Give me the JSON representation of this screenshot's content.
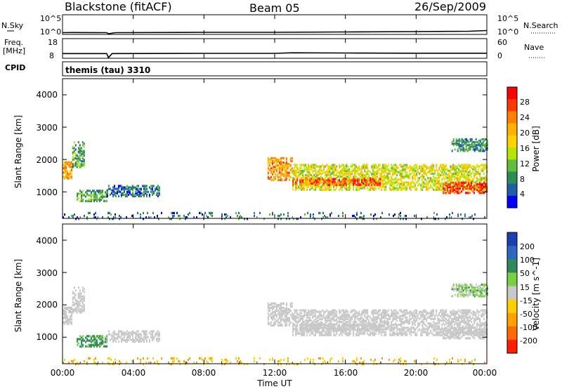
{
  "header": {
    "station": "Blackstone (fitACF)",
    "beam": "Beam 05",
    "date": "26/Sep/2009"
  },
  "strips": {
    "nsky_label": "N.Sky",
    "nsky_ticks": [
      "10^5",
      "10^0"
    ],
    "nsearch_label": "N.Search",
    "nsearch_ticks": [
      "10^5",
      "10^0"
    ],
    "freq_label": "Freq.",
    "freq_unit": "[MHz]",
    "freq_ticks": [
      "18",
      "8"
    ],
    "nave_label": "Nave",
    "nave_ticks": [
      "60",
      "0"
    ],
    "cpid_label": "CPID",
    "cpid_value": "themis (tau) 3310"
  },
  "axes": {
    "ylabel": "Slant Range [km]",
    "yticks": [
      "4000",
      "3000",
      "2000",
      "1000"
    ],
    "xlabel": "Time UT",
    "xticks": [
      "00:00",
      "04:00",
      "08:00",
      "12:00",
      "16:00",
      "20:00",
      "00:00"
    ]
  },
  "power_colorbar": {
    "label": "Power [dB]",
    "ticks": [
      "28",
      "24",
      "20",
      "16",
      "12",
      "8",
      "4"
    ],
    "colors": [
      "#ff0000",
      "#ff3a00",
      "#ff8000",
      "#ffb000",
      "#ffd200",
      "#b4e600",
      "#5fbf3a",
      "#2e8b57",
      "#1f5fa8",
      "#0000ff"
    ]
  },
  "velocity_colorbar": {
    "label": "Velocity [m s^-1]",
    "ticks": [
      "200",
      "100",
      "50",
      "15",
      "-15",
      "-50",
      "-100",
      "-200"
    ],
    "colors": [
      "#1a3fb0",
      "#2c67c0",
      "#2e8b57",
      "#7ad043",
      "#c8c8c8",
      "#ffd000",
      "#ffa000",
      "#ff6a00",
      "#ff1e00"
    ]
  },
  "chart_data": [
    {
      "type": "line",
      "name": "N.Sky / N.Search",
      "x_hours": [
        0,
        0.5,
        2.5,
        2.6,
        3,
        8,
        12,
        16,
        20,
        23,
        24
      ],
      "values_log": [
        0.3,
        0.35,
        0.3,
        0.0,
        0.3,
        0.4,
        0.4,
        0.5,
        0.6,
        0.7,
        0.9
      ],
      "ylim": [
        0,
        5
      ]
    },
    {
      "type": "line",
      "name": "Freq / Nave",
      "x_hours": [
        0,
        2.5,
        2.6,
        2.8,
        8,
        12,
        13,
        16,
        20,
        24
      ],
      "values_mhz": [
        10.2,
        10.2,
        8.0,
        10.2,
        10.3,
        10.3,
        10.6,
        10.5,
        10.4,
        10.4
      ],
      "ylim": [
        8,
        18
      ]
    },
    {
      "type": "heatmap",
      "name": "Power",
      "x_range_hours": [
        0,
        24
      ],
      "y_range_km": [
        180,
        4500
      ],
      "zlim_db": [
        0,
        32
      ],
      "regions": [
        {
          "t": [
            0.0,
            0.55
          ],
          "r": [
            1450,
            1950
          ],
          "level": 21
        },
        {
          "t": [
            0.55,
            1.2
          ],
          "r": [
            1800,
            2600
          ],
          "level": 10
        },
        {
          "t": [
            0.8,
            2.5
          ],
          "r": [
            750,
            1100
          ],
          "level": 10
        },
        {
          "t": [
            2.5,
            5.5
          ],
          "r": [
            900,
            1250
          ],
          "level": 6
        },
        {
          "t": [
            0.0,
            24.0
          ],
          "r": [
            200,
            400
          ],
          "level": 6
        },
        {
          "t": [
            11.6,
            13.0
          ],
          "r": [
            1400,
            2100
          ],
          "level": 22
        },
        {
          "t": [
            13.0,
            24.0
          ],
          "r": [
            1100,
            1900
          ],
          "level": 16
        },
        {
          "t": [
            13.0,
            18.0
          ],
          "r": [
            1250,
            1450
          ],
          "level": 26
        },
        {
          "t": [
            21.5,
            24.0
          ],
          "r": [
            1000,
            1350
          ],
          "level": 28
        },
        {
          "t": [
            22.0,
            24.0
          ],
          "r": [
            2300,
            2700
          ],
          "level": 8
        }
      ]
    },
    {
      "type": "heatmap",
      "name": "Velocity",
      "x_range_hours": [
        0,
        24
      ],
      "y_range_km": [
        180,
        4500
      ],
      "zlim_ms": [
        -250,
        250
      ],
      "regions": [
        {
          "t": [
            0.0,
            0.55
          ],
          "r": [
            1450,
            1950
          ],
          "vel": 0
        },
        {
          "t": [
            0.55,
            1.2
          ],
          "r": [
            1800,
            2600
          ],
          "vel": 0
        },
        {
          "t": [
            0.8,
            2.5
          ],
          "r": [
            750,
            1100
          ],
          "vel": 40
        },
        {
          "t": [
            2.5,
            5.5
          ],
          "r": [
            900,
            1250
          ],
          "vel": 0
        },
        {
          "t": [
            0.0,
            24.0
          ],
          "r": [
            200,
            400
          ],
          "vel": -30
        },
        {
          "t": [
            11.6,
            24.0
          ],
          "r": [
            1100,
            2000
          ],
          "vel": 0
        },
        {
          "t": [
            22.0,
            24.0
          ],
          "r": [
            2300,
            2700
          ],
          "vel": 20
        }
      ]
    }
  ]
}
